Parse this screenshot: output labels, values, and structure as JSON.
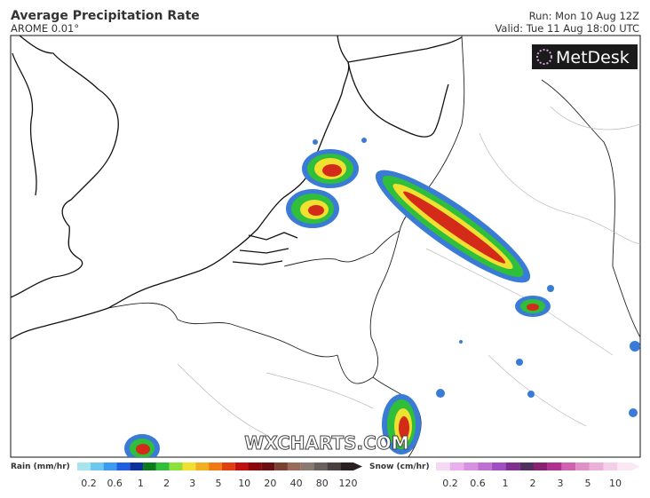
{
  "header": {
    "title": "Average Precipitation Rate",
    "model": "AROME 0.01°",
    "run": "Run: Mon 10 Aug 12Z",
    "valid": "Valid: Tue 11 Aug 18:00 UTC"
  },
  "logo": "MetDesk",
  "watermark": "WXCHARTS.COM",
  "legend": {
    "rain": {
      "label": "Rain (mm/hr)",
      "ticks": [
        0.2,
        0.6,
        1,
        2,
        3,
        5,
        10,
        20,
        40,
        80,
        120
      ]
    },
    "snow": {
      "label": "Snow (cm/hr)",
      "ticks": [
        0.2,
        0.6,
        1,
        2,
        3,
        5,
        10
      ]
    }
  }
}
